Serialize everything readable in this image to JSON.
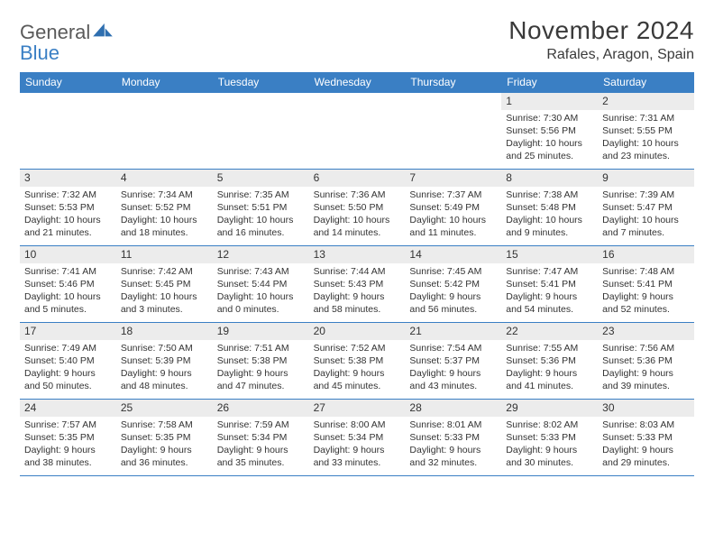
{
  "logo": {
    "word1": "General",
    "word2": "Blue"
  },
  "title": "November 2024",
  "subtitle": "Rafales, Aragon, Spain",
  "colors": {
    "header_bar": "#3a7fc4",
    "daynum_bg": "#ececec",
    "rule": "#3a7fc4",
    "text": "#333333",
    "logo_gray": "#5a5a5a",
    "logo_blue": "#3a7fc4",
    "background": "#ffffff"
  },
  "days_of_week": [
    "Sunday",
    "Monday",
    "Tuesday",
    "Wednesday",
    "Thursday",
    "Friday",
    "Saturday"
  ],
  "weeks": [
    [
      null,
      null,
      null,
      null,
      null,
      {
        "n": "1",
        "sunrise": "Sunrise: 7:30 AM",
        "sunset": "Sunset: 5:56 PM",
        "daylight": "Daylight: 10 hours and 25 minutes."
      },
      {
        "n": "2",
        "sunrise": "Sunrise: 7:31 AM",
        "sunset": "Sunset: 5:55 PM",
        "daylight": "Daylight: 10 hours and 23 minutes."
      }
    ],
    [
      {
        "n": "3",
        "sunrise": "Sunrise: 7:32 AM",
        "sunset": "Sunset: 5:53 PM",
        "daylight": "Daylight: 10 hours and 21 minutes."
      },
      {
        "n": "4",
        "sunrise": "Sunrise: 7:34 AM",
        "sunset": "Sunset: 5:52 PM",
        "daylight": "Daylight: 10 hours and 18 minutes."
      },
      {
        "n": "5",
        "sunrise": "Sunrise: 7:35 AM",
        "sunset": "Sunset: 5:51 PM",
        "daylight": "Daylight: 10 hours and 16 minutes."
      },
      {
        "n": "6",
        "sunrise": "Sunrise: 7:36 AM",
        "sunset": "Sunset: 5:50 PM",
        "daylight": "Daylight: 10 hours and 14 minutes."
      },
      {
        "n": "7",
        "sunrise": "Sunrise: 7:37 AM",
        "sunset": "Sunset: 5:49 PM",
        "daylight": "Daylight: 10 hours and 11 minutes."
      },
      {
        "n": "8",
        "sunrise": "Sunrise: 7:38 AM",
        "sunset": "Sunset: 5:48 PM",
        "daylight": "Daylight: 10 hours and 9 minutes."
      },
      {
        "n": "9",
        "sunrise": "Sunrise: 7:39 AM",
        "sunset": "Sunset: 5:47 PM",
        "daylight": "Daylight: 10 hours and 7 minutes."
      }
    ],
    [
      {
        "n": "10",
        "sunrise": "Sunrise: 7:41 AM",
        "sunset": "Sunset: 5:46 PM",
        "daylight": "Daylight: 10 hours and 5 minutes."
      },
      {
        "n": "11",
        "sunrise": "Sunrise: 7:42 AM",
        "sunset": "Sunset: 5:45 PM",
        "daylight": "Daylight: 10 hours and 3 minutes."
      },
      {
        "n": "12",
        "sunrise": "Sunrise: 7:43 AM",
        "sunset": "Sunset: 5:44 PM",
        "daylight": "Daylight: 10 hours and 0 minutes."
      },
      {
        "n": "13",
        "sunrise": "Sunrise: 7:44 AM",
        "sunset": "Sunset: 5:43 PM",
        "daylight": "Daylight: 9 hours and 58 minutes."
      },
      {
        "n": "14",
        "sunrise": "Sunrise: 7:45 AM",
        "sunset": "Sunset: 5:42 PM",
        "daylight": "Daylight: 9 hours and 56 minutes."
      },
      {
        "n": "15",
        "sunrise": "Sunrise: 7:47 AM",
        "sunset": "Sunset: 5:41 PM",
        "daylight": "Daylight: 9 hours and 54 minutes."
      },
      {
        "n": "16",
        "sunrise": "Sunrise: 7:48 AM",
        "sunset": "Sunset: 5:41 PM",
        "daylight": "Daylight: 9 hours and 52 minutes."
      }
    ],
    [
      {
        "n": "17",
        "sunrise": "Sunrise: 7:49 AM",
        "sunset": "Sunset: 5:40 PM",
        "daylight": "Daylight: 9 hours and 50 minutes."
      },
      {
        "n": "18",
        "sunrise": "Sunrise: 7:50 AM",
        "sunset": "Sunset: 5:39 PM",
        "daylight": "Daylight: 9 hours and 48 minutes."
      },
      {
        "n": "19",
        "sunrise": "Sunrise: 7:51 AM",
        "sunset": "Sunset: 5:38 PM",
        "daylight": "Daylight: 9 hours and 47 minutes."
      },
      {
        "n": "20",
        "sunrise": "Sunrise: 7:52 AM",
        "sunset": "Sunset: 5:38 PM",
        "daylight": "Daylight: 9 hours and 45 minutes."
      },
      {
        "n": "21",
        "sunrise": "Sunrise: 7:54 AM",
        "sunset": "Sunset: 5:37 PM",
        "daylight": "Daylight: 9 hours and 43 minutes."
      },
      {
        "n": "22",
        "sunrise": "Sunrise: 7:55 AM",
        "sunset": "Sunset: 5:36 PM",
        "daylight": "Daylight: 9 hours and 41 minutes."
      },
      {
        "n": "23",
        "sunrise": "Sunrise: 7:56 AM",
        "sunset": "Sunset: 5:36 PM",
        "daylight": "Daylight: 9 hours and 39 minutes."
      }
    ],
    [
      {
        "n": "24",
        "sunrise": "Sunrise: 7:57 AM",
        "sunset": "Sunset: 5:35 PM",
        "daylight": "Daylight: 9 hours and 38 minutes."
      },
      {
        "n": "25",
        "sunrise": "Sunrise: 7:58 AM",
        "sunset": "Sunset: 5:35 PM",
        "daylight": "Daylight: 9 hours and 36 minutes."
      },
      {
        "n": "26",
        "sunrise": "Sunrise: 7:59 AM",
        "sunset": "Sunset: 5:34 PM",
        "daylight": "Daylight: 9 hours and 35 minutes."
      },
      {
        "n": "27",
        "sunrise": "Sunrise: 8:00 AM",
        "sunset": "Sunset: 5:34 PM",
        "daylight": "Daylight: 9 hours and 33 minutes."
      },
      {
        "n": "28",
        "sunrise": "Sunrise: 8:01 AM",
        "sunset": "Sunset: 5:33 PM",
        "daylight": "Daylight: 9 hours and 32 minutes."
      },
      {
        "n": "29",
        "sunrise": "Sunrise: 8:02 AM",
        "sunset": "Sunset: 5:33 PM",
        "daylight": "Daylight: 9 hours and 30 minutes."
      },
      {
        "n": "30",
        "sunrise": "Sunrise: 8:03 AM",
        "sunset": "Sunset: 5:33 PM",
        "daylight": "Daylight: 9 hours and 29 minutes."
      }
    ]
  ]
}
